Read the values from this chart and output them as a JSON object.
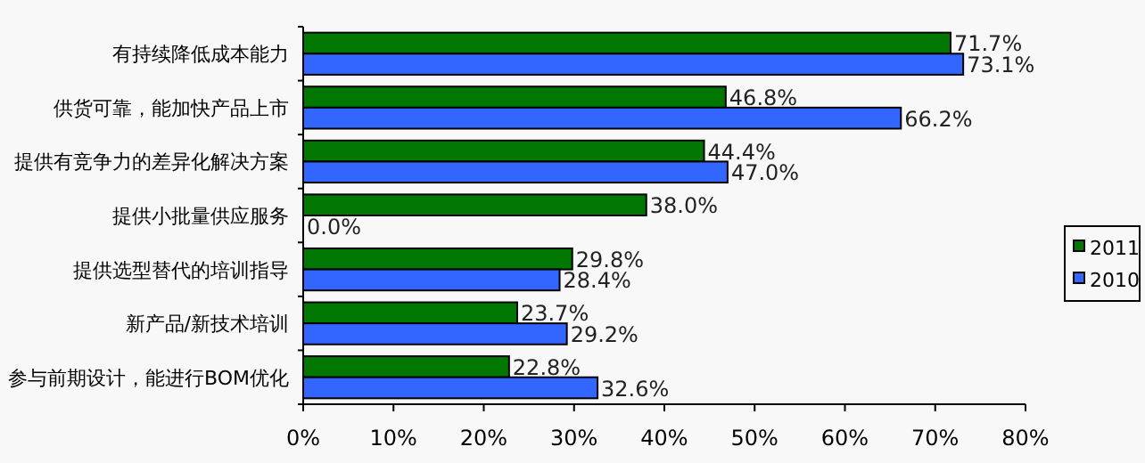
{
  "chart_data": {
    "type": "bar",
    "orientation": "horizontal",
    "categories": [
      "有持续降低成本能力",
      "供货可靠，能加快产品上市",
      "提供有竞争力的差异化解决方案",
      "提供小批量供应服务",
      "提供选型替代的培训指导",
      "新产品/新技术培训",
      "参与前期设计，能进行BOM优化"
    ],
    "series": [
      {
        "name": "2011",
        "color": "#007700",
        "values": [
          71.7,
          46.8,
          44.4,
          38.0,
          29.8,
          23.7,
          22.8
        ],
        "value_labels": [
          "71.7%",
          "46.8%",
          "44.4%",
          "38.0%",
          "29.8%",
          "23.7%",
          "22.8%"
        ]
      },
      {
        "name": "2010",
        "color": "#3366ff",
        "values": [
          73.1,
          66.2,
          47.0,
          0.0,
          28.4,
          29.2,
          32.6
        ],
        "value_labels": [
          "73.1%",
          "66.2%",
          "47.0%",
          "0.0%",
          "28.4%",
          "29.2%",
          "32.6%"
        ]
      }
    ],
    "xlim": [
      0,
      80
    ],
    "xticks": [
      {
        "value": 0,
        "label": "0%"
      },
      {
        "value": 10,
        "label": "10%"
      },
      {
        "value": 20,
        "label": "20%"
      },
      {
        "value": 30,
        "label": "30%"
      },
      {
        "value": 40,
        "label": "40%"
      },
      {
        "value": 50,
        "label": "50%"
      },
      {
        "value": 60,
        "label": "60%"
      },
      {
        "value": 70,
        "label": "70%"
      },
      {
        "value": 80,
        "label": "80%"
      }
    ],
    "grid": false,
    "legend": "right"
  }
}
